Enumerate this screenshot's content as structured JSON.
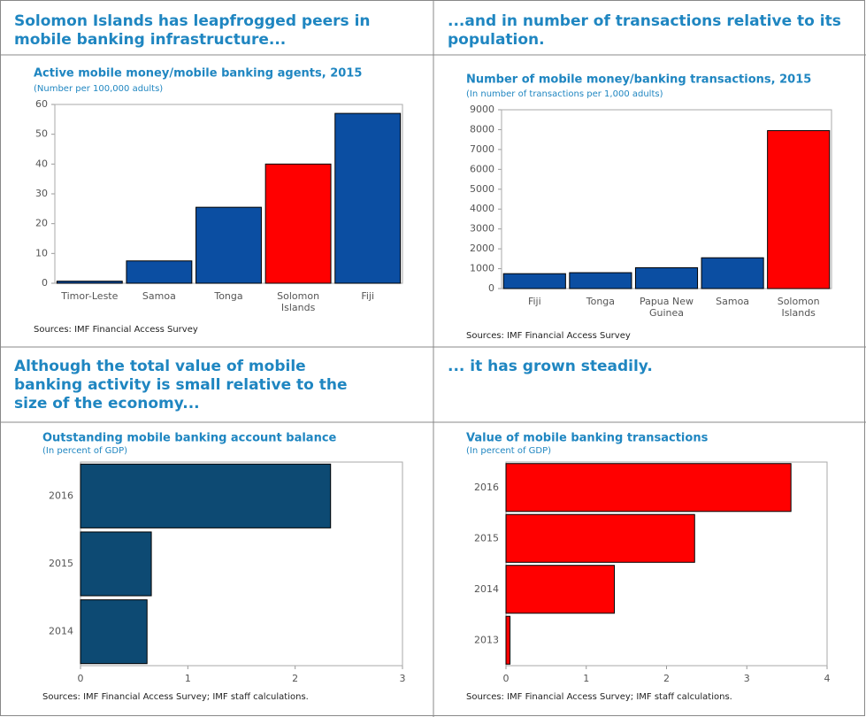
{
  "headings": [
    "Solomon Islands has leapfrogged peers in mobile banking infrastructure...",
    "...and in number of transactions relative to its population.",
    "Although the total value of mobile banking activity is small relative to the size of the economy...",
    "... it has grown steadily."
  ],
  "chart_data": [
    {
      "type": "bar",
      "title": "Active mobile money/mobile banking agents, 2015",
      "subtitle": "(Number per 100,000 adults)",
      "source": "Sources: IMF Financial Access Survey",
      "categories": [
        "Timor-Leste",
        "Samoa",
        "Tonga",
        "Solomon Islands",
        "Fiji"
      ],
      "values": [
        0.7,
        7.5,
        25.5,
        40,
        57
      ],
      "colors": [
        "#0b4ea2",
        "#0b4ea2",
        "#0b4ea2",
        "#ff0000",
        "#0b4ea2"
      ],
      "ylim": [
        0,
        60
      ],
      "yticks": [
        0,
        10,
        20,
        30,
        40,
        50,
        60
      ]
    },
    {
      "type": "bar",
      "title": "Number of mobile money/banking transactions, 2015",
      "subtitle": "(In number of transactions per 1,000 adults)",
      "source": "Sources: IMF Financial Access Survey",
      "categories": [
        "Fiji",
        "Tonga",
        "Papua New Guinea",
        "Samoa",
        "Solomon Islands"
      ],
      "values": [
        750,
        800,
        1050,
        1550,
        7950
      ],
      "colors": [
        "#0b4ea2",
        "#0b4ea2",
        "#0b4ea2",
        "#0b4ea2",
        "#ff0000"
      ],
      "ylim": [
        0,
        9000
      ],
      "yticks": [
        0,
        1000,
        2000,
        3000,
        4000,
        5000,
        6000,
        7000,
        8000,
        9000
      ]
    },
    {
      "type": "barh",
      "title": "Outstanding mobile banking account balance",
      "subtitle": "(In percent of GDP)",
      "source": "Sources: IMF Financial Access Survey; IMF staff calculations.",
      "categories": [
        "2016",
        "2015",
        "2014"
      ],
      "values": [
        2.33,
        0.66,
        0.62
      ],
      "colors": [
        "#0d4a73",
        "#0d4a73",
        "#0d4a73"
      ],
      "xlim": [
        0,
        3
      ],
      "xticks": [
        0,
        1,
        2,
        3
      ]
    },
    {
      "type": "barh",
      "title": "Value of mobile banking transactions",
      "subtitle": "(In percent of GDP)",
      "source": "Sources: IMF Financial Access Survey; IMF staff calculations.",
      "categories": [
        "2016",
        "2015",
        "2014",
        "2013"
      ],
      "values": [
        3.55,
        2.35,
        1.35,
        0.05
      ],
      "colors": [
        "#ff0000",
        "#ff0000",
        "#ff0000",
        "#ff0000"
      ],
      "xlim": [
        0,
        4
      ],
      "xticks": [
        0,
        1,
        2,
        3,
        4
      ]
    }
  ]
}
